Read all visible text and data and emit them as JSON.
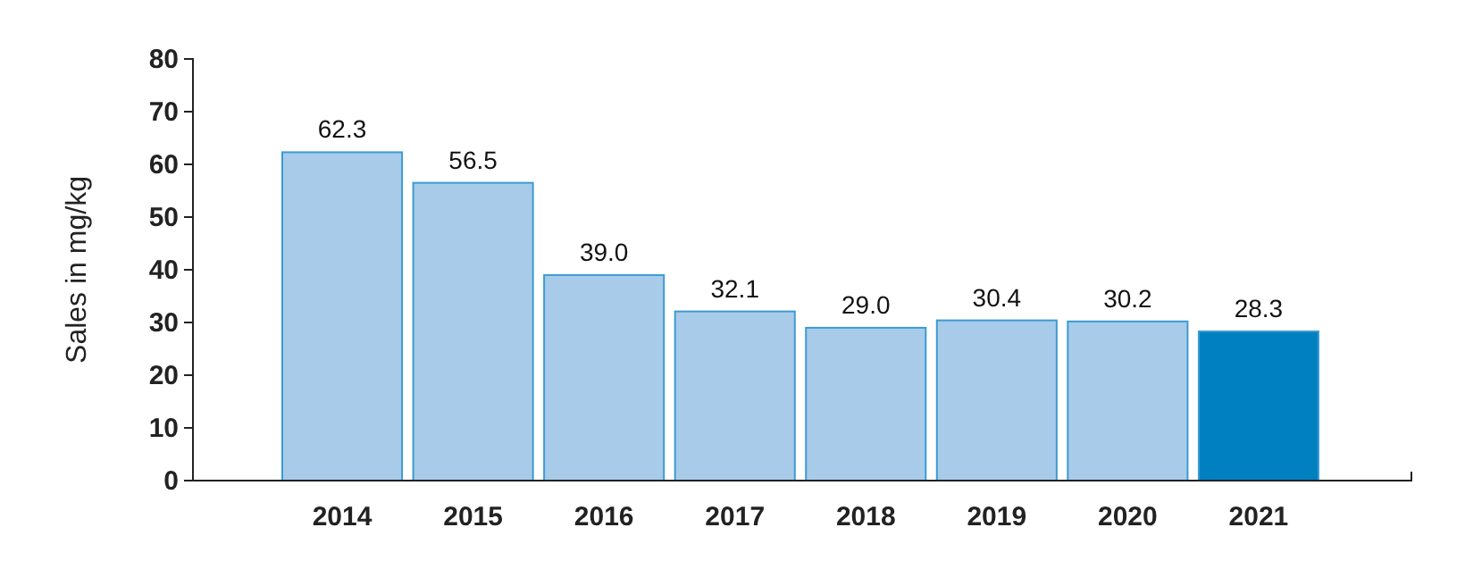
{
  "chart_data": {
    "type": "bar",
    "ylabel": "Sales in mg/kg",
    "categories": [
      "2014",
      "2015",
      "2016",
      "2017",
      "2018",
      "2019",
      "2020",
      "2021"
    ],
    "values": [
      62.3,
      56.5,
      39.0,
      32.1,
      29.0,
      30.4,
      30.2,
      28.3
    ],
    "colors": [
      "#a8cbe9",
      "#a8cbe9",
      "#a8cbe9",
      "#a8cbe9",
      "#a8cbe9",
      "#a8cbe9",
      "#a8cbe9",
      "#0080c0"
    ],
    "value_labels": [
      "62.3",
      "56.5",
      "39.0",
      "32.1",
      "29.0",
      "30.4",
      "30.2",
      "28.3"
    ],
    "ylim": [
      0,
      80
    ],
    "yticks": [
      0,
      10,
      20,
      30,
      40,
      50,
      60,
      70,
      80
    ]
  }
}
